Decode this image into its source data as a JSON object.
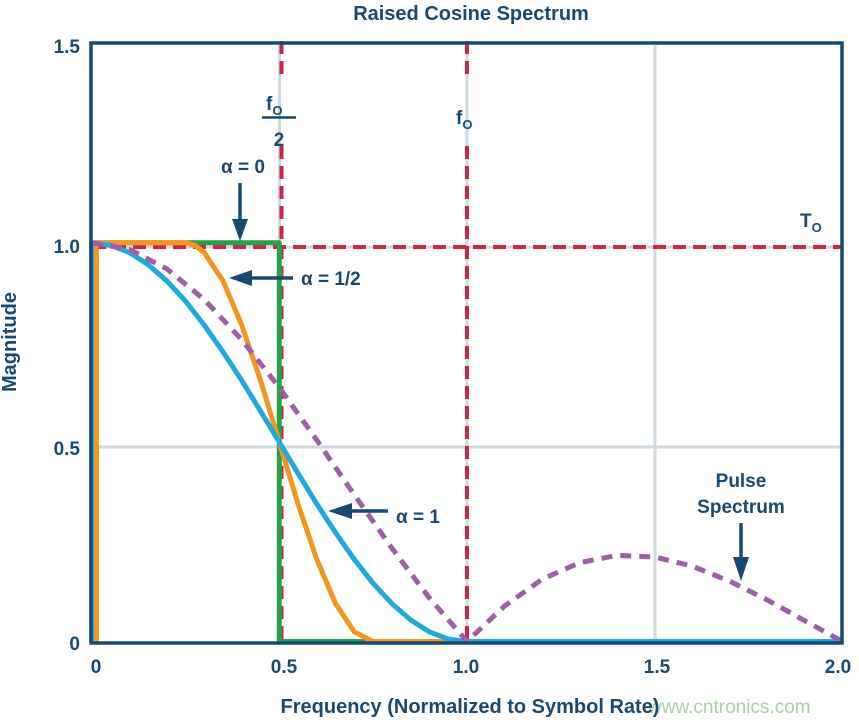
{
  "title": "Raised Cosine Spectrum",
  "watermark": "www.cntronics.com",
  "colors": {
    "navy": "#164a72",
    "red_dashed": "#d02440",
    "green_alpha0": "#25a147",
    "orange_alpha_half": "#f79420",
    "cyan_alpha1": "#1fa9dd",
    "purple_pulse": "#9e5fa7",
    "gridline": "#cfd9e2",
    "watermark_green": "#a6d2a0"
  },
  "axes": {
    "xlabel": "Frequency (Normalized to Symbol Rate)",
    "ylabel": "Magnitude",
    "x_tick_labels": [
      "0",
      "0.5",
      "1.0",
      "1.5",
      "2.0"
    ],
    "y_tick_labels": [
      "1.5",
      "1.0",
      "0.5",
      "0"
    ]
  },
  "annotations": {
    "alpha0": "α = 0",
    "alpha_half": "α = 1/2",
    "alpha1": "α = 1",
    "f0_half_num": "f",
    "f0_half_num_sub": "O",
    "f0_half_den": "2",
    "f0_main": "f",
    "f0_sub": "O",
    "t0_main": "T",
    "t0_sub": "O",
    "pulse_line1": "Pulse",
    "pulse_line2": "Spectrum"
  },
  "chart_data": {
    "type": "line",
    "title": "Raised Cosine Spectrum",
    "xlabel": "Frequency (Normalized to Symbol Rate)",
    "ylabel": "Magnitude",
    "xlim": [
      0,
      2
    ],
    "ylim": [
      0,
      1.5
    ],
    "x_ticks": [
      0,
      0.5,
      1.0,
      1.5,
      2.0
    ],
    "y_ticks": [
      0,
      0.5,
      1.0,
      1.5
    ],
    "grid": "light gridlines at x=0.5,1.0,1.5 and y=0.5,1.0",
    "reference_lines": [
      {
        "axis": "x",
        "value": 0.5,
        "label": "fO/2",
        "style": "red dashed vertical"
      },
      {
        "axis": "x",
        "value": 1.0,
        "label": "fO",
        "style": "red dashed vertical"
      },
      {
        "axis": "y",
        "value": 1.0,
        "label": "TO",
        "style": "red dashed horizontal"
      }
    ],
    "series": [
      {
        "name": "alpha-0",
        "label": "α = 0",
        "color": "#25a147",
        "style": "solid",
        "points": [
          [
            0,
            1
          ],
          [
            0.5,
            1
          ],
          [
            0.5,
            0
          ],
          [
            1.02,
            0
          ]
        ]
      },
      {
        "name": "alpha-half",
        "label": "α = 1/2",
        "color": "#f79420",
        "style": "solid",
        "points": [
          [
            0.013,
            0
          ],
          [
            0.013,
            1
          ],
          [
            0.25,
            1
          ],
          [
            0.275,
            0.994
          ],
          [
            0.3,
            0.976
          ],
          [
            0.35,
            0.905
          ],
          [
            0.4,
            0.794
          ],
          [
            0.45,
            0.655
          ],
          [
            0.5,
            0.5
          ],
          [
            0.55,
            0.345
          ],
          [
            0.6,
            0.206
          ],
          [
            0.65,
            0.095
          ],
          [
            0.7,
            0.024
          ],
          [
            0.75,
            0
          ],
          [
            1.35,
            0
          ]
        ]
      },
      {
        "name": "alpha-1",
        "label": "α = 1",
        "color": "#1fa9dd",
        "style": "solid",
        "points": [
          [
            0,
            0
          ],
          [
            0,
            1
          ],
          [
            0.05,
            0.994
          ],
          [
            0.1,
            0.976
          ],
          [
            0.15,
            0.946
          ],
          [
            0.2,
            0.905
          ],
          [
            0.25,
            0.854
          ],
          [
            0.3,
            0.794
          ],
          [
            0.35,
            0.727
          ],
          [
            0.4,
            0.655
          ],
          [
            0.45,
            0.578
          ],
          [
            0.5,
            0.5
          ],
          [
            0.55,
            0.422
          ],
          [
            0.6,
            0.345
          ],
          [
            0.65,
            0.273
          ],
          [
            0.7,
            0.206
          ],
          [
            0.75,
            0.146
          ],
          [
            0.8,
            0.095
          ],
          [
            0.85,
            0.054
          ],
          [
            0.9,
            0.024
          ],
          [
            0.95,
            0.006
          ],
          [
            1,
            0
          ],
          [
            2,
            0
          ]
        ]
      },
      {
        "name": "pulse-spectrum",
        "label": "Pulse Spectrum",
        "color": "#9e5fa7",
        "style": "dashed",
        "points": [
          [
            0,
            1
          ],
          [
            0.1,
            0.984
          ],
          [
            0.2,
            0.935
          ],
          [
            0.3,
            0.858
          ],
          [
            0.4,
            0.757
          ],
          [
            0.5,
            0.637
          ],
          [
            0.6,
            0.505
          ],
          [
            0.7,
            0.368
          ],
          [
            0.8,
            0.234
          ],
          [
            0.9,
            0.109
          ],
          [
            1,
            0
          ],
          [
            1.1,
            0.089
          ],
          [
            1.2,
            0.156
          ],
          [
            1.3,
            0.198
          ],
          [
            1.4,
            0.216
          ],
          [
            1.5,
            0.212
          ],
          [
            1.6,
            0.189
          ],
          [
            1.7,
            0.151
          ],
          [
            1.8,
            0.104
          ],
          [
            1.9,
            0.052
          ],
          [
            2,
            0
          ]
        ]
      }
    ]
  }
}
